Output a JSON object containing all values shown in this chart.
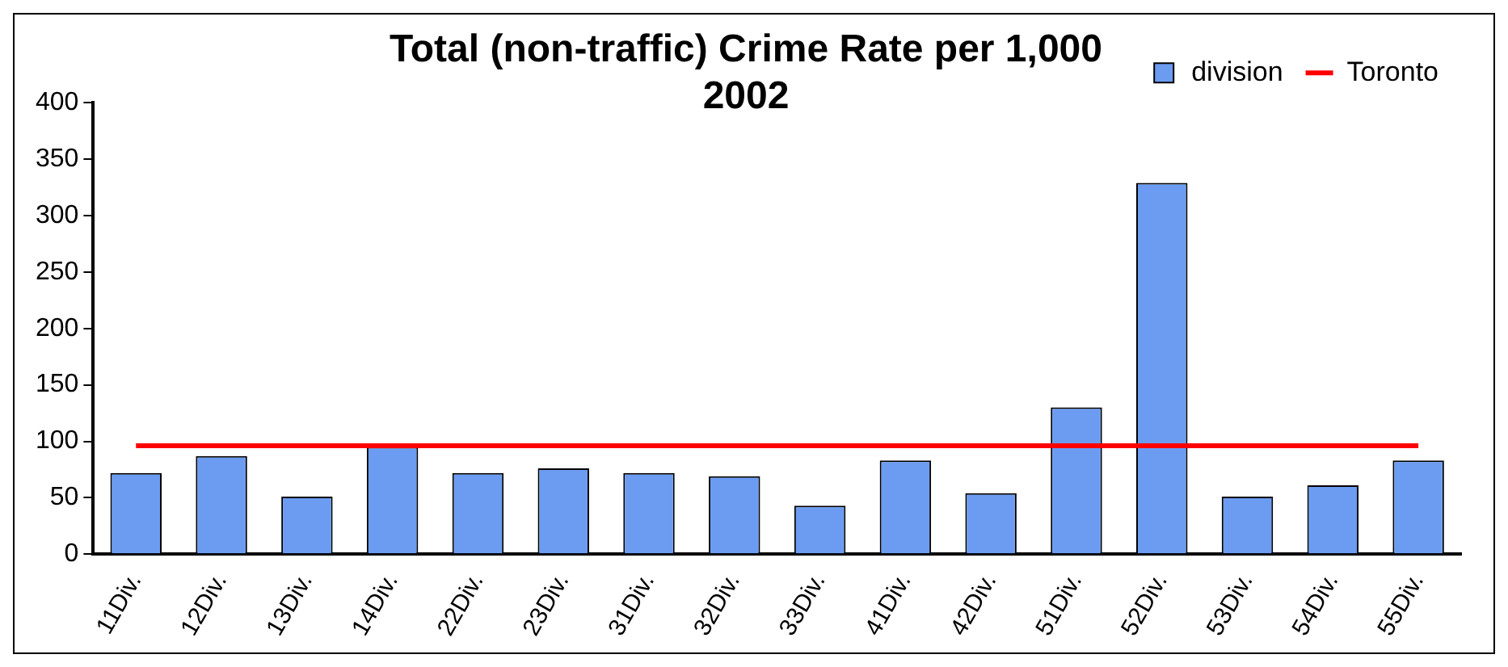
{
  "chart_data": {
    "type": "bar",
    "title": "Total (non-traffic) Crime Rate per 1,000\n2002",
    "categories": [
      "11Div.",
      "12Div.",
      "13Div.",
      "14Div.",
      "22Div.",
      "23Div.",
      "31Div.",
      "32Div.",
      "33Div.",
      "41Div.",
      "42Div.",
      "51Div.",
      "52Div.",
      "53Div.",
      "54Div.",
      "55Div."
    ],
    "series": [
      {
        "name": "division",
        "color": "#6b9cf2",
        "values": [
          72,
          87,
          51,
          95,
          72,
          76,
          72,
          69,
          43,
          83,
          54,
          130,
          329,
          51,
          61,
          83
        ]
      },
      {
        "name": "Toronto",
        "type": "line",
        "color": "#ff0000",
        "values": [
          96,
          96,
          96,
          96,
          96,
          96,
          96,
          96,
          96,
          96,
          96,
          96,
          96,
          96,
          96,
          96
        ]
      }
    ],
    "ylim": [
      0,
      400
    ],
    "yticks": [
      0,
      50,
      100,
      150,
      200,
      250,
      300,
      350,
      400
    ],
    "grid": false,
    "legend": "top right"
  }
}
